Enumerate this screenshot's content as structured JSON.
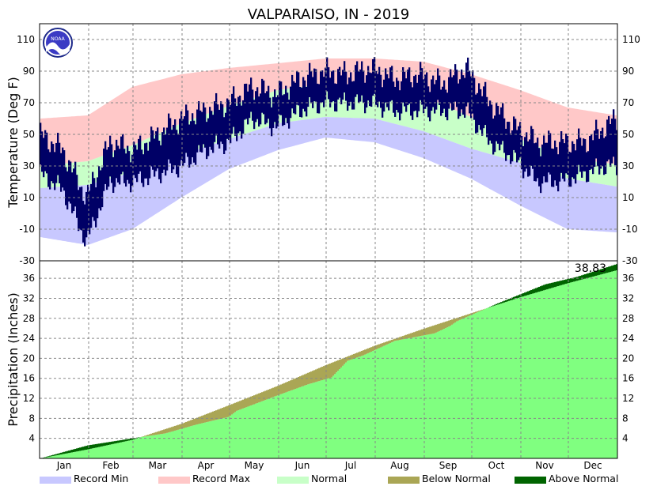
{
  "chart_data": [
    {
      "type": "bar",
      "title": "VALPARAISO, IN - 2019",
      "ylabel": "Temperature (Deg F)",
      "ylim": [
        -30,
        120
      ],
      "yticks": [
        -30,
        -10,
        10,
        30,
        50,
        70,
        90,
        110
      ],
      "months": [
        "Jan",
        "Feb",
        "Mar",
        "Apr",
        "May",
        "Jun",
        "Jul",
        "Aug",
        "Sep",
        "Oct",
        "Nov",
        "Dec"
      ],
      "grid": true,
      "daily_high_low": {
        "x_day": [
          1,
          15,
          30,
          45,
          60,
          75,
          90,
          105,
          120,
          135,
          150,
          165,
          180,
          195,
          210,
          225,
          240,
          255,
          270,
          285,
          300,
          315,
          330,
          345,
          358,
          365
        ],
        "high": [
          50,
          40,
          10,
          45,
          40,
          50,
          60,
          65,
          70,
          80,
          75,
          85,
          90,
          88,
          92,
          85,
          88,
          82,
          92,
          70,
          55,
          45,
          45,
          45,
          55,
          60
        ],
        "low": [
          25,
          15,
          -18,
          20,
          20,
          25,
          30,
          40,
          45,
          60,
          55,
          65,
          70,
          70,
          70,
          65,
          65,
          65,
          65,
          45,
          35,
          20,
          20,
          25,
          30,
          30
        ]
      },
      "normals": {
        "x_day": [
          1,
          31,
          59,
          90,
          120,
          151,
          181,
          212,
          243,
          273,
          304,
          334,
          365
        ],
        "normal_high": [
          30,
          33,
          43,
          57,
          68,
          78,
          82,
          80,
          74,
          61,
          47,
          35,
          31
        ],
        "normal_low": [
          16,
          18,
          26,
          37,
          47,
          57,
          61,
          60,
          52,
          41,
          32,
          22,
          17
        ],
        "record_high": [
          60,
          62,
          80,
          88,
          92,
          95,
          98,
          98,
          96,
          88,
          78,
          67,
          62
        ],
        "record_low": [
          -15,
          -20,
          -10,
          10,
          28,
          40,
          48,
          45,
          35,
          22,
          5,
          -10,
          -12
        ]
      }
    },
    {
      "type": "area",
      "ylabel": "Precipitation (Inches)",
      "ylim": [
        0,
        39.5
      ],
      "yticks": [
        4,
        8,
        12,
        16,
        20,
        24,
        28,
        32,
        36
      ],
      "grid": true,
      "annotation": "38.83",
      "actual": {
        "x_day": [
          1,
          31,
          59,
          80,
          100,
          120,
          125,
          150,
          170,
          185,
          195,
          205,
          225,
          250,
          260,
          264,
          290,
          320,
          340,
          365
        ],
        "value": [
          0,
          2.6,
          4.0,
          5.0,
          6.8,
          8.3,
          9.5,
          12.5,
          14.8,
          16.2,
          19.5,
          20.6,
          23.5,
          25.0,
          26.5,
          27.4,
          31.0,
          34.8,
          36.3,
          38.83
        ]
      },
      "normal": {
        "x_day": [
          1,
          31,
          59,
          90,
          120,
          151,
          181,
          212,
          243,
          273,
          304,
          334,
          365
        ],
        "value": [
          0,
          1.8,
          3.7,
          6.9,
          10.6,
          14.5,
          18.6,
          22.5,
          25.9,
          29.0,
          32.2,
          35.0,
          37.6
        ]
      }
    }
  ],
  "legend": [
    {
      "label": "Record Min",
      "color": "#c8c8ff"
    },
    {
      "label": "Record Max",
      "color": "#ffc8c8"
    },
    {
      "label": "Normal",
      "color": "#c8ffc8"
    },
    {
      "label": "Below Normal",
      "color": "#aaa655"
    },
    {
      "label": "Above Normal",
      "color": "#006400"
    }
  ],
  "colors": {
    "observed": "#000066",
    "precip_normal_fill": "#80ff80"
  },
  "logo_text": "NOAA"
}
